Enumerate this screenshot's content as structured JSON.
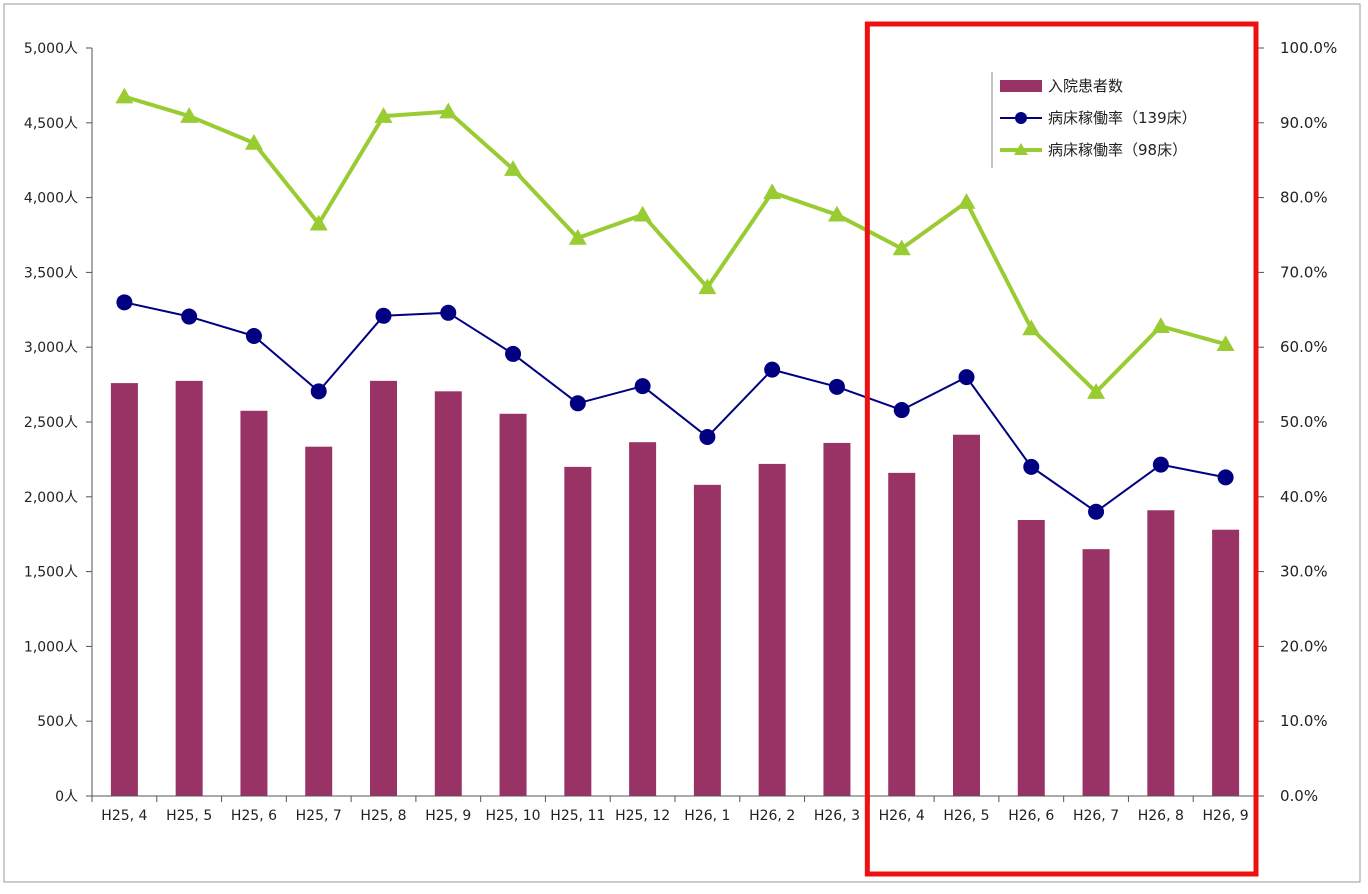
{
  "chart_data": {
    "type": "bar",
    "categories": [
      "H25, 4",
      "H25, 5",
      "H25, 6",
      "H25, 7",
      "H25, 8",
      "H25, 9",
      "H25, 10",
      "H25, 11",
      "H25, 12",
      "H26, 1",
      "H26, 2",
      "H26, 3",
      "H26, 4",
      "H26, 5",
      "H26, 6",
      "H26, 7",
      "H26, 8",
      "H26, 9"
    ],
    "series": [
      {
        "name": "入院患者数",
        "type": "bar",
        "axis": "left",
        "color": "#993366",
        "values": [
          2760,
          2775,
          2575,
          2335,
          2775,
          2705,
          2555,
          2200,
          2365,
          2080,
          2220,
          2360,
          2160,
          2415,
          1845,
          1650,
          1910,
          1780
        ]
      },
      {
        "name": "病床稼働率（139床）",
        "type": "line",
        "axis": "right",
        "color": "#000080",
        "marker": "circle",
        "values": [
          66.0,
          64.1,
          61.5,
          54.1,
          64.2,
          64.6,
          59.1,
          52.5,
          54.8,
          48.0,
          57.0,
          54.7,
          51.6,
          56.0,
          44.0,
          38.0,
          44.3,
          42.6
        ]
      },
      {
        "name": "病床稼働率（98床）",
        "type": "line",
        "axis": "right",
        "color": "#99CC33",
        "marker": "triangle",
        "values": [
          93.5,
          90.9,
          87.3,
          76.5,
          90.9,
          91.5,
          83.8,
          74.6,
          77.7,
          68.0,
          80.7,
          77.7,
          73.2,
          79.4,
          62.5,
          54.0,
          62.8,
          60.4
        ]
      }
    ],
    "left_axis": {
      "ylim": [
        0,
        5000
      ],
      "ticks": [
        "0人",
        "500人",
        "1,000人",
        "1,500人",
        "2,000人",
        "2,500人",
        "3,000人",
        "3,500人",
        "4,000人",
        "4,500人",
        "5,000人"
      ]
    },
    "right_axis": {
      "ylim": [
        0,
        100
      ],
      "ticks": [
        "0.0%",
        "10.0%",
        "20.0%",
        "30.0%",
        "40.0%",
        "50.0%",
        "60.0%",
        "70.0%",
        "80.0%",
        "90.0%",
        "100.0%"
      ]
    },
    "legend_position": "top-right",
    "highlight": {
      "from_category": "H26, 4",
      "to_category": "H26, 9",
      "color": "#EE1111"
    },
    "grid": false
  }
}
